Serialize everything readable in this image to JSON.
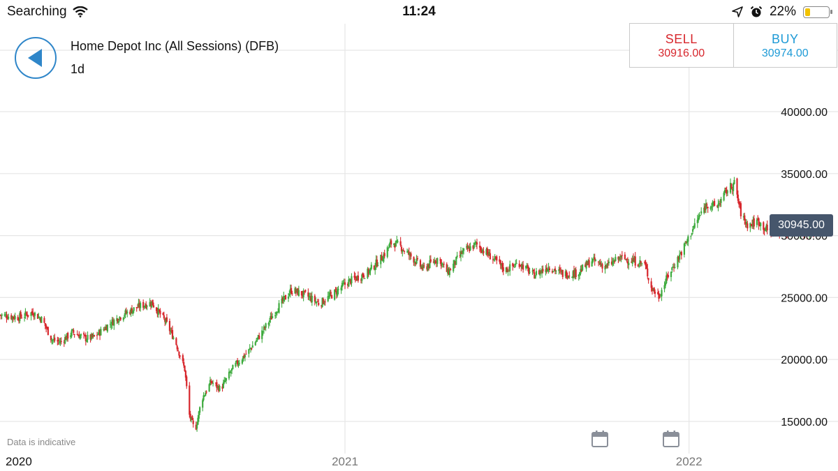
{
  "status_bar": {
    "carrier": "Searching",
    "time": "11:24",
    "battery_percent_text": "22%",
    "battery_level": 0.22,
    "icons": [
      "wifi-icon",
      "location-arrow-icon",
      "alarm-clock-icon",
      "battery-icon"
    ]
  },
  "header": {
    "back_icon": "back-arrow-icon",
    "instrument": "Home Depot Inc (All Sessions) (DFB)",
    "timeframe": "1d"
  },
  "trade": {
    "sell_label": "SELL",
    "sell_price": "30916.00",
    "buy_label": "BUY",
    "buy_price": "30974.00"
  },
  "current_price_label": "30945.00",
  "note": "Data is indicative",
  "calendar_icons": [
    "calendar-icon",
    "calendar-icon"
  ],
  "colors": {
    "up": "#3fab3f",
    "down": "#d7262c",
    "grid": "#e6e6e6",
    "sell": "#d7262c",
    "buy": "#1d9ad6",
    "price_tag": "#46566c",
    "accent": "#2f86c9"
  },
  "chart_data": {
    "type": "candlestick",
    "title": "",
    "xlabel": "",
    "ylabel": "",
    "grid": true,
    "ylim": [
      13500,
      43500
    ],
    "y_ticks": [
      15000,
      20000,
      25000,
      30000,
      35000,
      40000
    ],
    "y_tick_labels": [
      "15000.00",
      "20000.00",
      "25000.00",
      "30000.00",
      "35000.00",
      "40000.00"
    ],
    "x_range": [
      "2020-01-01",
      "2022-05-20"
    ],
    "x_ticks": [
      {
        "date": "2020-01-01",
        "label": "2020"
      },
      {
        "date": "2021-01-01",
        "label": "2021"
      },
      {
        "date": "2022-01-01",
        "label": "2022"
      }
    ],
    "last_price": 30945,
    "close_path": [
      [
        "2020-01-01",
        23600
      ],
      [
        "2020-01-20",
        23400
      ],
      [
        "2020-02-05",
        23800
      ],
      [
        "2020-02-15",
        23200
      ],
      [
        "2020-02-25",
        21600
      ],
      [
        "2020-03-05",
        21400
      ],
      [
        "2020-03-18",
        22200
      ],
      [
        "2020-04-01",
        21700
      ],
      [
        "2020-04-10",
        21800
      ],
      [
        "2020-04-25",
        22800
      ],
      [
        "2020-05-10",
        23600
      ],
      [
        "2020-05-28",
        24300
      ],
      [
        "2020-06-10",
        24600
      ],
      [
        "2020-06-25",
        23000
      ],
      [
        "2020-07-05",
        21500
      ],
      [
        "2020-07-15",
        19200
      ],
      [
        "2020-07-20",
        15500
      ],
      [
        "2020-07-26",
        14200
      ],
      [
        "2020-08-02",
        16800
      ],
      [
        "2020-08-12",
        18200
      ],
      [
        "2020-08-22",
        17600
      ],
      [
        "2020-09-05",
        19400
      ],
      [
        "2020-09-20",
        20600
      ],
      [
        "2020-10-05",
        22200
      ],
      [
        "2020-10-20",
        24000
      ],
      [
        "2020-11-05",
        25600
      ],
      [
        "2020-11-20",
        25200
      ],
      [
        "2020-12-05",
        24500
      ],
      [
        "2020-12-18",
        25200
      ],
      [
        "2021-01-05",
        26300
      ],
      [
        "2021-01-25",
        27000
      ],
      [
        "2021-02-10",
        28300
      ],
      [
        "2021-02-20",
        29500
      ],
      [
        "2021-03-01",
        29100
      ],
      [
        "2021-03-15",
        28100
      ],
      [
        "2021-03-25",
        27300
      ],
      [
        "2021-04-10",
        28200
      ],
      [
        "2021-04-20",
        27000
      ],
      [
        "2021-05-05",
        28600
      ],
      [
        "2021-05-20",
        29300
      ],
      [
        "2021-06-05",
        28300
      ],
      [
        "2021-06-20",
        27200
      ],
      [
        "2021-07-05",
        27800
      ],
      [
        "2021-07-20",
        26800
      ],
      [
        "2021-08-05",
        27500
      ],
      [
        "2021-08-20",
        26900
      ],
      [
        "2021-09-05",
        27000
      ],
      [
        "2021-09-20",
        28000
      ],
      [
        "2021-10-05",
        27500
      ],
      [
        "2021-10-20",
        28200
      ],
      [
        "2021-11-05",
        27900
      ],
      [
        "2021-11-15",
        27700
      ],
      [
        "2021-11-22",
        25800
      ],
      [
        "2021-11-30",
        25100
      ],
      [
        "2021-12-10",
        26800
      ],
      [
        "2021-12-25",
        28800
      ],
      [
        "2022-01-08",
        31000
      ],
      [
        "2022-01-20",
        32600
      ],
      [
        "2022-01-30",
        32300
      ],
      [
        "2022-02-10",
        33600
      ],
      [
        "2022-02-18",
        34200
      ],
      [
        "2022-02-26",
        31500
      ],
      [
        "2022-03-05",
        30800
      ],
      [
        "2022-03-15",
        31200
      ],
      [
        "2022-03-25",
        30400
      ]
    ],
    "note": "Daily OHLC candles are generated by interpolating the close path read off the price axis; dates beyond the 2022 label follow the chart's time axis."
  }
}
